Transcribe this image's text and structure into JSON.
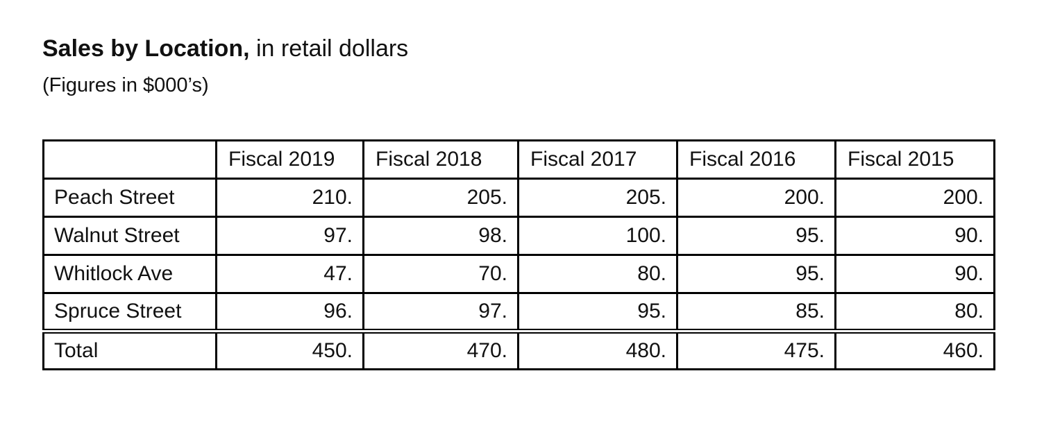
{
  "header": {
    "title_bold": "Sales by Location,",
    "title_rest": " in retail dollars",
    "subtitle": "(Figures in $000’s)"
  },
  "table": {
    "columns": [
      "",
      "Fiscal 2019",
      "Fiscal 2018",
      "Fiscal 2017",
      "Fiscal 2016",
      "Fiscal 2015"
    ],
    "rows": [
      {
        "label": "Peach Street",
        "values": [
          "210.",
          "205.",
          "205.",
          "200.",
          "200."
        ]
      },
      {
        "label": "Walnut Street",
        "values": [
          "97.",
          "98.",
          "100.",
          "95.",
          "90."
        ]
      },
      {
        "label": "Whitlock Ave",
        "values": [
          "47.",
          "70.",
          "80.",
          "95.",
          "90."
        ]
      },
      {
        "label": "Spruce Street",
        "values": [
          "96.",
          "97.",
          "95.",
          "85.",
          "80."
        ]
      }
    ],
    "total": {
      "label": "Total",
      "values": [
        "450.",
        "470.",
        "480.",
        "475.",
        "460."
      ]
    }
  }
}
